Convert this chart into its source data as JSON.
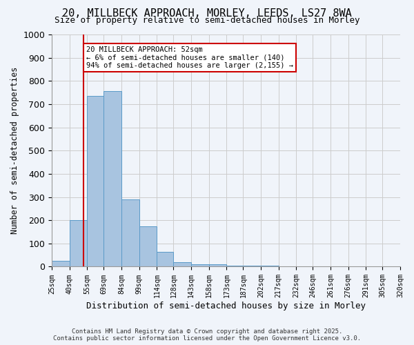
{
  "title_line1": "20, MILLBECK APPROACH, MORLEY, LEEDS, LS27 8WA",
  "title_line2": "Size of property relative to semi-detached houses in Morley",
  "xlabel": "Distribution of semi-detached houses by size in Morley",
  "ylabel": "Number of semi-detached properties",
  "bar_color": "#a8c4e0",
  "bar_edge_color": "#5a9ac8",
  "grid_color": "#cccccc",
  "bin_labels": [
    "25sqm",
    "40sqm",
    "55sqm",
    "69sqm",
    "84sqm",
    "99sqm",
    "114sqm",
    "128sqm",
    "143sqm",
    "158sqm",
    "173sqm",
    "187sqm",
    "202sqm",
    "217sqm",
    "232sqm",
    "246sqm",
    "261sqm",
    "276sqm",
    "291sqm",
    "305sqm",
    "320sqm"
  ],
  "bin_edges": [
    25,
    40,
    55,
    69,
    84,
    99,
    114,
    128,
    143,
    158,
    173,
    187,
    202,
    217,
    232,
    246,
    261,
    276,
    291,
    305,
    320
  ],
  "bar_heights": [
    25,
    200,
    735,
    755,
    290,
    175,
    65,
    20,
    10,
    10,
    5,
    5,
    5,
    0,
    0,
    0,
    0,
    0,
    0,
    0
  ],
  "property_line_x": 52,
  "ylim": [
    0,
    1000
  ],
  "yticks": [
    0,
    100,
    200,
    300,
    400,
    500,
    600,
    700,
    800,
    900,
    1000
  ],
  "annotation_title": "20 MILLBECK APPROACH: 52sqm",
  "annotation_line1": "← 6% of semi-detached houses are smaller (140)",
  "annotation_line2": "94% of semi-detached houses are larger (2,155) →",
  "annotation_box_color": "#ffffff",
  "annotation_box_edge": "#cc0000",
  "property_line_color": "#cc0000",
  "footer_line1": "Contains HM Land Registry data © Crown copyright and database right 2025.",
  "footer_line2": "Contains public sector information licensed under the Open Government Licence v3.0.",
  "bg_color": "#f0f4fa"
}
